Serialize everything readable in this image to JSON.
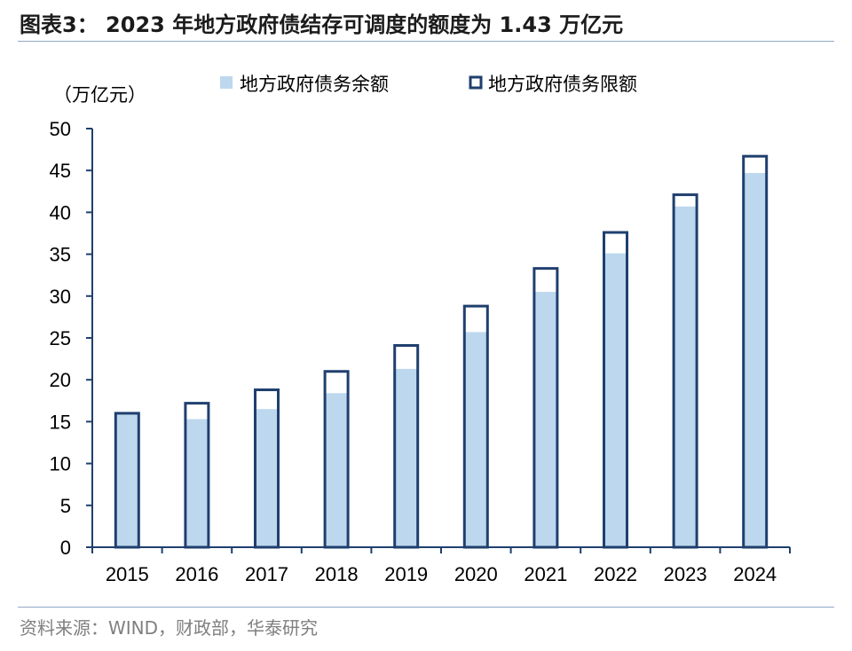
{
  "figure": {
    "title": "图表3： 2023 年地方政府债结存可调度的额度为 1.43 万亿元",
    "source": "资料来源：WIND，财政部，华泰研究"
  },
  "colors": {
    "balance_fill": "#bdd7ee",
    "limit_outline": "#1f3f6e",
    "axis": "#1f3f6e",
    "rule": "#8fa9c6"
  },
  "chart_data": {
    "type": "bar",
    "unit_label": "（万亿元）",
    "categories": [
      "2015",
      "2016",
      "2017",
      "2018",
      "2019",
      "2020",
      "2021",
      "2022",
      "2023",
      "2024"
    ],
    "series": [
      {
        "name": "地方政府债务余额",
        "style": "filled",
        "values": [
          16.0,
          15.3,
          16.5,
          18.4,
          21.3,
          25.7,
          30.5,
          35.1,
          40.7,
          44.7
        ]
      },
      {
        "name": "地方政府债务限额",
        "style": "outline",
        "values": [
          16.0,
          17.2,
          18.8,
          21.0,
          24.1,
          28.8,
          33.3,
          37.6,
          42.1,
          46.7
        ]
      }
    ],
    "yticks": [
      0,
      5,
      10,
      15,
      20,
      25,
      30,
      35,
      40,
      45,
      50
    ],
    "ylim": [
      0,
      50
    ],
    "grid": false,
    "legend_position": "top"
  }
}
